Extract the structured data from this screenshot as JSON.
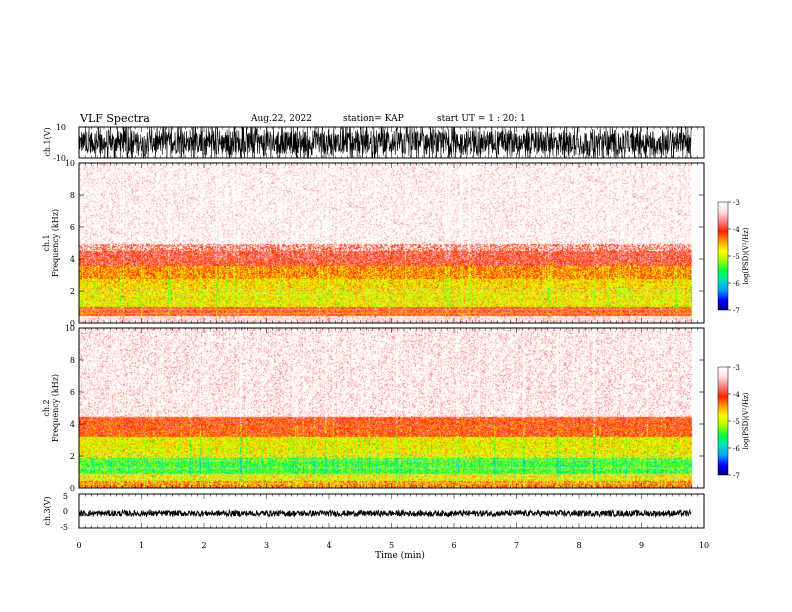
{
  "header": {
    "title": "VLF Spectra",
    "date": "Aug.22, 2022",
    "station": "station= KAP",
    "start_ut": "start  UT =   1 : 20: 1"
  },
  "chart_data": [
    {
      "id": "ch1_waveform",
      "type": "line",
      "ylabel": "ch.1(V)",
      "ylim": [
        -10,
        10
      ],
      "yticks": [
        "10",
        "-10"
      ],
      "xlim": [
        0,
        10
      ],
      "data_end_min": 9.8,
      "amplitude_range": [
        -10,
        10
      ],
      "color": "#000000"
    },
    {
      "id": "ch1_spectrogram",
      "type": "heatmap",
      "ylabel": "Frequency (kHz)",
      "channel_label": "ch.1",
      "ylim": [
        0,
        10
      ],
      "yticks": [
        "0",
        "2",
        "4",
        "6",
        "8",
        "10"
      ],
      "xlim": [
        0,
        10
      ],
      "data_end_min": 9.8,
      "bands": [
        {
          "f_low": 0.0,
          "f_high": 0.5,
          "level": -3.2
        },
        {
          "f_low": 0.5,
          "f_high": 1.0,
          "level": -4.1
        },
        {
          "f_low": 1.0,
          "f_high": 2.0,
          "level": -4.8
        },
        {
          "f_low": 2.0,
          "f_high": 2.8,
          "level": -4.7
        },
        {
          "f_low": 2.8,
          "f_high": 3.6,
          "level": -4.4
        },
        {
          "f_low": 3.6,
          "f_high": 5.0,
          "level": -3.9
        },
        {
          "f_low": 5.0,
          "f_high": 10.0,
          "level": -3.2
        }
      ],
      "colorbar": {
        "label": "log(PSD)(V²/Hz)",
        "range": [
          -7,
          -3
        ],
        "ticks": [
          "-3",
          "-4",
          "-5",
          "-6",
          "-7"
        ]
      }
    },
    {
      "id": "ch2_spectrogram",
      "type": "heatmap",
      "ylabel": "Frequency (kHz)",
      "channel_label": "ch.2",
      "ylim": [
        0,
        10
      ],
      "yticks": [
        "0",
        "2",
        "4",
        "6",
        "8",
        "10"
      ],
      "xlim": [
        0,
        10
      ],
      "data_end_min": 9.8,
      "bands": [
        {
          "f_low": 0.0,
          "f_high": 0.5,
          "level": -4.4
        },
        {
          "f_low": 0.5,
          "f_high": 0.9,
          "level": -4.8
        },
        {
          "f_low": 0.9,
          "f_high": 1.9,
          "level": -5.4
        },
        {
          "f_low": 1.9,
          "f_high": 3.2,
          "level": -4.8
        },
        {
          "f_low": 3.2,
          "f_high": 4.5,
          "level": -4.1
        },
        {
          "f_low": 4.5,
          "f_high": 10.0,
          "level": -3.3
        }
      ],
      "colorbar": {
        "label": "log(PSD)(V²/Hz)",
        "range": [
          -7,
          -3
        ],
        "ticks": [
          "-3",
          "-4",
          "-5",
          "-6",
          "-7"
        ]
      }
    },
    {
      "id": "ch3_waveform",
      "type": "line",
      "ylabel": "ch.3(V)",
      "ylim": [
        -5,
        5
      ],
      "yticks": [
        "5",
        "0",
        "-5"
      ],
      "xlim": [
        0,
        10
      ],
      "data_end_min": 9.8,
      "amplitude_range": [
        -1.6,
        0.2
      ],
      "color": "#000000"
    }
  ],
  "x_axis": {
    "label": "Time (min)",
    "ticks": [
      "0",
      "1",
      "2",
      "3",
      "4",
      "5",
      "6",
      "7",
      "8",
      "9",
      "10"
    ]
  },
  "colors": {
    "colormap": [
      "#000080",
      "#0000ff",
      "#00a0ff",
      "#00e0c0",
      "#00ff40",
      "#a0ff00",
      "#ffff00",
      "#ffa000",
      "#ff2000",
      "#ff8080",
      "#ffe0e0",
      "#ffffff"
    ]
  }
}
